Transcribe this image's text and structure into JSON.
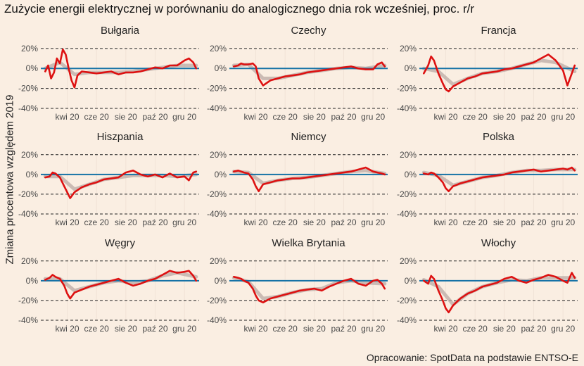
{
  "title": "Zużycie energii elektrycznej w porównaniu do analogicznego dnia rok wcześniej, proc. r/r",
  "ylabel": "Zmiana procentowa względem 2019",
  "caption": "Opracowanie: SpotData na podstawie ENTSO-E",
  "colors": {
    "background": "#faeee2",
    "line": "#dd1111",
    "smooth": "#bbaaa4",
    "zero": "#1572a6",
    "grid": "#f1e3d7"
  },
  "chart_data": {
    "type": "line",
    "facets": [
      "Bułgaria",
      "Czechy",
      "Francja",
      "Hiszpania",
      "Niemcy",
      "Polska",
      "Węgry",
      "Wielka Brytania",
      "Włochy"
    ],
    "x_tick_labels": [
      "kwi 20",
      "cze 20",
      "sie 20",
      "paź 20",
      "gru 20"
    ],
    "x_tick_months": [
      4,
      6,
      8,
      10,
      12
    ],
    "xlim_months": [
      2.2,
      13.0
    ],
    "ylim": [
      -40,
      22
    ],
    "y_ticks": [
      -40,
      -20,
      0,
      20
    ],
    "y_tick_labels": [
      "-40%",
      "-20%",
      "0%",
      "20%"
    ],
    "reference_line": 0,
    "grid": true,
    "series": [
      {
        "facet": "Bułgaria",
        "x": [
          2.5,
          2.7,
          2.9,
          3.1,
          3.3,
          3.5,
          3.7,
          3.9,
          4.1,
          4.3,
          4.5,
          4.7,
          5.0,
          5.5,
          6.0,
          6.5,
          7.0,
          7.5,
          8.0,
          8.5,
          9.0,
          9.5,
          10.0,
          10.5,
          11.0,
          11.5,
          12.0,
          12.3,
          12.6,
          12.8
        ],
        "y": [
          -3,
          3,
          -10,
          -4,
          10,
          5,
          19,
          14,
          0,
          -12,
          -19,
          -7,
          -3,
          -4,
          -5,
          -4,
          -3,
          -6,
          -4,
          -4,
          -3,
          -1,
          1,
          0,
          3,
          3,
          8,
          10,
          6,
          0
        ]
      },
      {
        "facet": "Czechy",
        "x": [
          2.5,
          2.8,
          3.0,
          3.2,
          3.5,
          3.8,
          4.0,
          4.2,
          4.5,
          5.0,
          5.5,
          6.0,
          6.5,
          7.0,
          7.5,
          8.0,
          8.5,
          9.0,
          9.5,
          10.0,
          10.5,
          11.0,
          11.5,
          12.0,
          12.3,
          12.6,
          12.8
        ],
        "y": [
          2,
          3,
          5,
          4,
          4,
          5,
          2,
          -10,
          -17,
          -12,
          -10,
          -8,
          -7,
          -6,
          -4,
          -3,
          -2,
          -1,
          0,
          1,
          2,
          0,
          -1,
          -1,
          4,
          6,
          2
        ]
      },
      {
        "facet": "Francja",
        "x": [
          2.5,
          2.8,
          3.0,
          3.2,
          3.5,
          3.8,
          4.0,
          4.2,
          4.5,
          5.0,
          5.5,
          6.0,
          6.5,
          7.0,
          7.5,
          8.0,
          8.5,
          9.0,
          9.5,
          10.0,
          10.5,
          11.0,
          11.5,
          12.0,
          12.3,
          12.6,
          12.8
        ],
        "y": [
          -5,
          3,
          12,
          8,
          -5,
          -15,
          -21,
          -23,
          -18,
          -14,
          -10,
          -8,
          -5,
          -4,
          -3,
          -1,
          0,
          2,
          4,
          6,
          10,
          14,
          8,
          -2,
          -17,
          -5,
          3
        ]
      },
      {
        "facet": "Hiszpania",
        "x": [
          2.5,
          2.8,
          3.0,
          3.2,
          3.5,
          3.8,
          4.0,
          4.2,
          4.5,
          5.0,
          5.5,
          6.0,
          6.5,
          7.0,
          7.5,
          8.0,
          8.5,
          9.0,
          9.5,
          10.0,
          10.5,
          11.0,
          11.5,
          12.0,
          12.3,
          12.6,
          12.8
        ],
        "y": [
          -3,
          -2,
          2,
          1,
          -3,
          -12,
          -18,
          -24,
          -18,
          -13,
          -10,
          -8,
          -5,
          -4,
          -3,
          2,
          4,
          0,
          -2,
          0,
          -3,
          1,
          -3,
          -2,
          -6,
          2,
          3
        ]
      },
      {
        "facet": "Niemcy",
        "x": [
          2.5,
          2.8,
          3.0,
          3.2,
          3.5,
          3.8,
          4.0,
          4.2,
          4.5,
          5.0,
          5.5,
          6.0,
          6.5,
          7.0,
          7.5,
          8.0,
          8.5,
          9.0,
          9.5,
          10.0,
          10.5,
          11.0,
          11.5,
          12.0,
          12.3,
          12.6,
          12.8
        ],
        "y": [
          3,
          4,
          3,
          2,
          1,
          -5,
          -12,
          -17,
          -10,
          -8,
          -6,
          -5,
          -4,
          -4,
          -3,
          -2,
          -1,
          0,
          1,
          2,
          3,
          5,
          7,
          3,
          2,
          1,
          0
        ]
      },
      {
        "facet": "Polska",
        "x": [
          2.5,
          2.8,
          3.0,
          3.2,
          3.5,
          3.8,
          4.0,
          4.2,
          4.5,
          5.0,
          5.5,
          6.0,
          6.5,
          7.0,
          7.5,
          8.0,
          8.5,
          9.0,
          9.5,
          10.0,
          10.5,
          11.0,
          11.5,
          12.0,
          12.3,
          12.6,
          12.8
        ],
        "y": [
          1,
          0,
          2,
          1,
          -3,
          -8,
          -14,
          -17,
          -12,
          -9,
          -7,
          -5,
          -3,
          -2,
          -1,
          0,
          2,
          3,
          4,
          5,
          3,
          4,
          5,
          6,
          5,
          7,
          4
        ]
      },
      {
        "facet": "Węgry",
        "x": [
          2.5,
          2.8,
          3.0,
          3.2,
          3.5,
          3.8,
          4.0,
          4.2,
          4.5,
          5.0,
          5.5,
          6.0,
          6.5,
          7.0,
          7.5,
          8.0,
          8.5,
          9.0,
          9.5,
          10.0,
          10.5,
          11.0,
          11.5,
          12.0,
          12.3,
          12.6,
          12.8
        ],
        "y": [
          1,
          3,
          6,
          4,
          2,
          -5,
          -13,
          -18,
          -12,
          -9,
          -6,
          -4,
          -2,
          0,
          2,
          -2,
          -5,
          -3,
          0,
          2,
          6,
          10,
          8,
          9,
          10,
          5,
          0
        ]
      },
      {
        "facet": "Wielka Brytania",
        "x": [
          2.5,
          2.8,
          3.0,
          3.2,
          3.5,
          3.8,
          4.0,
          4.2,
          4.5,
          5.0,
          5.5,
          6.0,
          6.5,
          7.0,
          7.5,
          8.0,
          8.5,
          9.0,
          9.5,
          10.0,
          10.5,
          11.0,
          11.5,
          12.0,
          12.3,
          12.6,
          12.8
        ],
        "y": [
          4,
          3,
          2,
          0,
          -2,
          -8,
          -15,
          -20,
          -22,
          -18,
          -16,
          -14,
          -12,
          -10,
          -9,
          -8,
          -10,
          -6,
          -3,
          0,
          2,
          -3,
          -5,
          0,
          1,
          -3,
          -8
        ]
      },
      {
        "facet": "Włochy",
        "x": [
          2.5,
          2.8,
          3.0,
          3.2,
          3.5,
          3.8,
          4.0,
          4.2,
          4.5,
          5.0,
          5.5,
          6.0,
          6.5,
          7.0,
          7.5,
          8.0,
          8.5,
          9.0,
          9.5,
          10.0,
          10.5,
          11.0,
          11.5,
          12.0,
          12.3,
          12.6,
          12.8
        ],
        "y": [
          0,
          -3,
          5,
          2,
          -10,
          -20,
          -28,
          -32,
          -25,
          -18,
          -13,
          -10,
          -6,
          -4,
          -2,
          2,
          4,
          0,
          -2,
          1,
          3,
          6,
          4,
          0,
          -2,
          8,
          3
        ]
      }
    ],
    "smooth": [
      {
        "facet": "Bułgaria",
        "x": [
          2.5,
          3.5,
          4.5,
          5.5,
          6.5,
          7.5,
          8.5,
          9.5,
          10.5,
          11.5,
          12.8
        ],
        "y": [
          0,
          6,
          -6,
          -4,
          -4,
          -4,
          -3,
          -1,
          1,
          3,
          3
        ]
      },
      {
        "facet": "Czechy",
        "x": [
          2.5,
          3.5,
          4.5,
          5.5,
          6.5,
          7.5,
          8.5,
          9.5,
          10.5,
          11.5,
          12.8
        ],
        "y": [
          3,
          4,
          -10,
          -10,
          -7,
          -4,
          -2,
          0,
          1,
          0,
          3
        ]
      },
      {
        "facet": "Francja",
        "x": [
          2.5,
          3.5,
          4.5,
          5.5,
          6.5,
          7.5,
          8.5,
          9.5,
          10.5,
          11.5,
          12.8
        ],
        "y": [
          0,
          -3,
          -16,
          -10,
          -5,
          -3,
          0,
          4,
          8,
          6,
          -3
        ]
      },
      {
        "facet": "Hiszpania",
        "x": [
          2.5,
          3.5,
          4.5,
          5.5,
          6.5,
          7.5,
          8.5,
          9.5,
          10.5,
          11.5,
          12.8
        ],
        "y": [
          -2,
          -2,
          -15,
          -10,
          -5,
          -3,
          -1,
          -1,
          -1,
          -2,
          0
        ]
      },
      {
        "facet": "Niemcy",
        "x": [
          2.5,
          3.5,
          4.5,
          5.5,
          6.5,
          7.5,
          8.5,
          9.5,
          10.5,
          11.5,
          12.8
        ],
        "y": [
          3,
          2,
          -9,
          -6,
          -4,
          -3,
          -1,
          1,
          3,
          4,
          1
        ]
      },
      {
        "facet": "Polska",
        "x": [
          2.5,
          3.5,
          4.5,
          5.5,
          6.5,
          7.5,
          8.5,
          9.5,
          10.5,
          11.5,
          12.8
        ],
        "y": [
          2,
          -1,
          -11,
          -7,
          -3,
          -1,
          2,
          4,
          4,
          5,
          5
        ]
      },
      {
        "facet": "Węgry",
        "x": [
          2.5,
          3.5,
          4.5,
          5.5,
          6.5,
          7.5,
          8.5,
          9.5,
          10.5,
          11.5,
          12.8
        ],
        "y": [
          2,
          2,
          -10,
          -6,
          -2,
          0,
          -2,
          0,
          5,
          8,
          4
        ]
      },
      {
        "facet": "Wielka Brytania",
        "x": [
          2.5,
          3.5,
          4.5,
          5.5,
          6.5,
          7.5,
          8.5,
          9.5,
          10.5,
          11.5,
          12.8
        ],
        "y": [
          3,
          -1,
          -18,
          -16,
          -12,
          -9,
          -8,
          -2,
          0,
          -2,
          -3
        ]
      },
      {
        "facet": "Włochy",
        "x": [
          2.5,
          3.5,
          4.5,
          5.5,
          6.5,
          7.5,
          8.5,
          9.5,
          10.5,
          11.5,
          12.8
        ],
        "y": [
          1,
          -6,
          -24,
          -13,
          -6,
          -2,
          1,
          0,
          3,
          3,
          3
        ]
      }
    ]
  }
}
